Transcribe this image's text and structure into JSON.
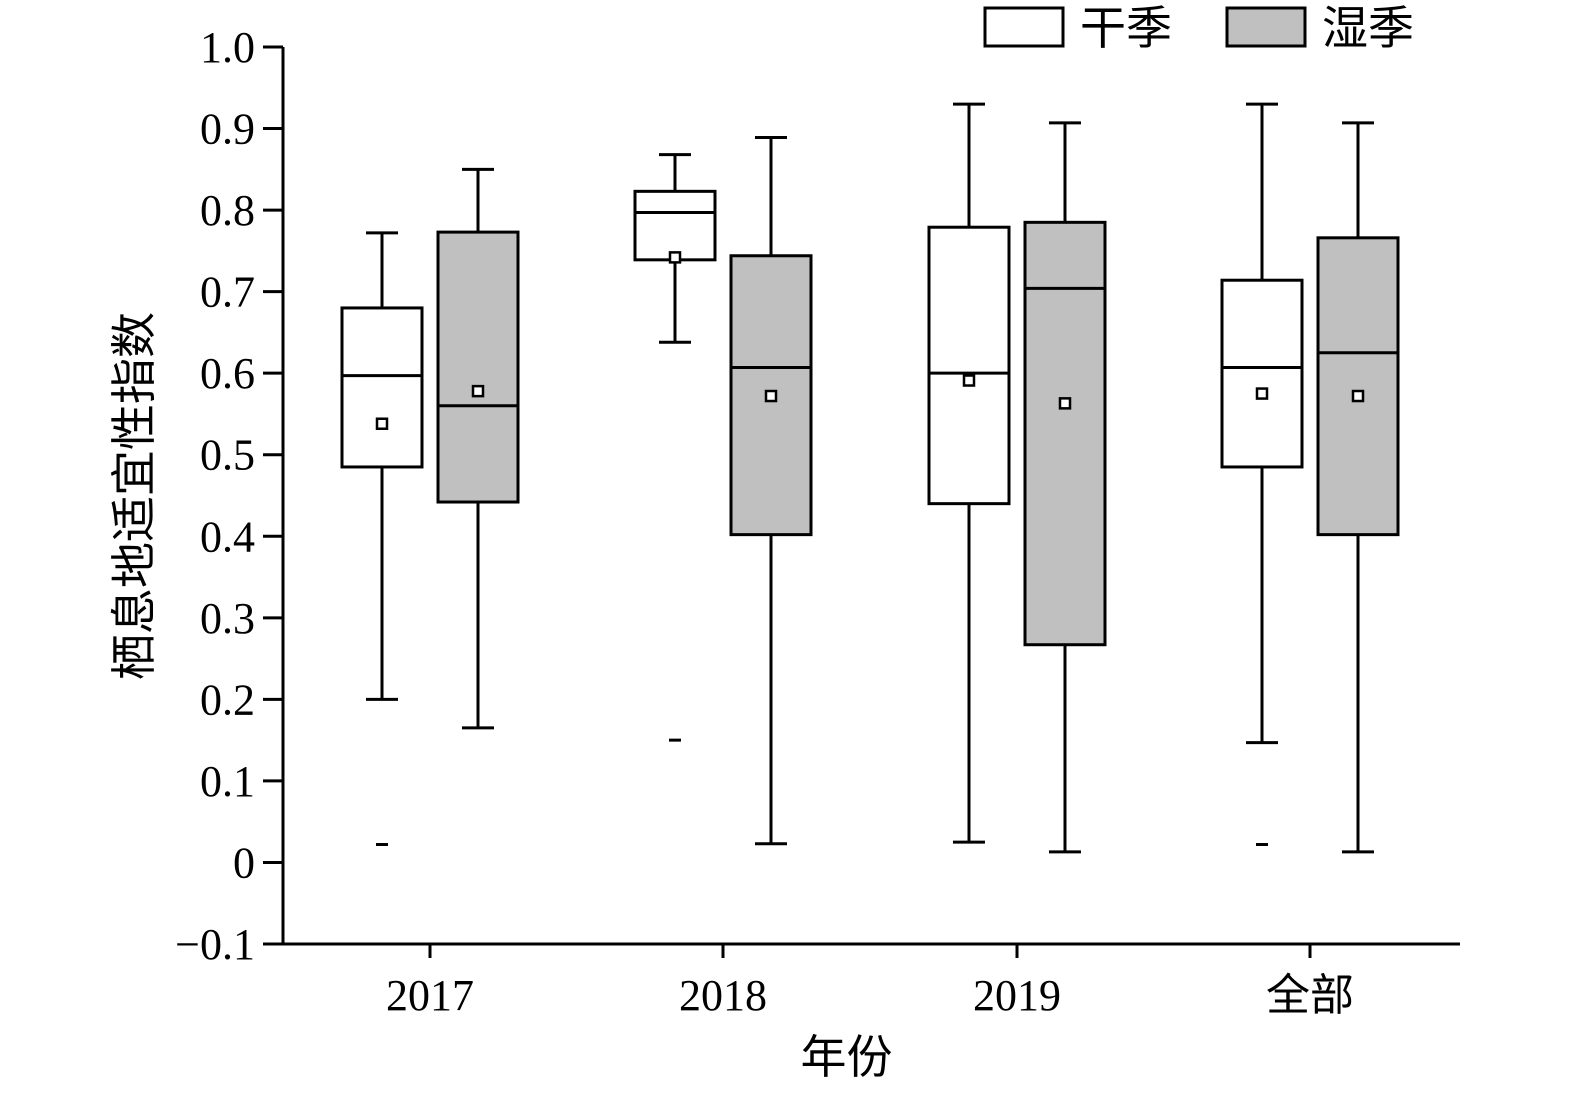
{
  "chart_data": {
    "type": "box",
    "xlabel": "年份",
    "ylabel": "栖息地适宜性指数",
    "ylim": [
      -0.1,
      1.0
    ],
    "yticks": [
      -0.1,
      0,
      0.1,
      0.2,
      0.3,
      0.4,
      0.5,
      0.6,
      0.7,
      0.8,
      0.9,
      1.0
    ],
    "ytick_labels": [
      "−0.1",
      "0",
      "0.1",
      "0.2",
      "0.3",
      "0.4",
      "0.5",
      "0.6",
      "0.7",
      "0.8",
      "0.9",
      "1.0"
    ],
    "categories": [
      "2017",
      "2018",
      "2019",
      "全部"
    ],
    "grid": false,
    "legend_position": "top-right",
    "series": [
      {
        "name": "干季",
        "color": "#ffffff",
        "boxes": [
          {
            "whisker_low": 0.2,
            "q1": 0.485,
            "median": 0.597,
            "q3": 0.68,
            "whisker_high": 0.772,
            "mean": 0.538,
            "outliers": [
              0.022
            ]
          },
          {
            "whisker_low": 0.638,
            "q1": 0.739,
            "median": 0.797,
            "q3": 0.823,
            "whisker_high": 0.868,
            "mean": 0.742,
            "outliers": [
              0.15
            ]
          },
          {
            "whisker_low": 0.025,
            "q1": 0.44,
            "median": 0.6,
            "q3": 0.779,
            "whisker_high": 0.93,
            "mean": 0.591,
            "outliers": []
          },
          {
            "whisker_low": 0.147,
            "q1": 0.485,
            "median": 0.607,
            "q3": 0.714,
            "whisker_high": 0.93,
            "mean": 0.575,
            "outliers": [
              0.022
            ]
          }
        ]
      },
      {
        "name": "湿季",
        "color": "#c0c0c0",
        "boxes": [
          {
            "whisker_low": 0.165,
            "q1": 0.442,
            "median": 0.56,
            "q3": 0.773,
            "whisker_high": 0.85,
            "mean": 0.578,
            "outliers": []
          },
          {
            "whisker_low": 0.023,
            "q1": 0.402,
            "median": 0.607,
            "q3": 0.744,
            "whisker_high": 0.889,
            "mean": 0.572,
            "outliers": []
          },
          {
            "whisker_low": 0.013,
            "q1": 0.267,
            "median": 0.704,
            "q3": 0.785,
            "whisker_high": 0.907,
            "mean": 0.563,
            "outliers": []
          },
          {
            "whisker_low": 0.013,
            "q1": 0.402,
            "median": 0.625,
            "q3": 0.766,
            "whisker_high": 0.907,
            "mean": 0.572,
            "outliers": []
          }
        ]
      }
    ]
  }
}
